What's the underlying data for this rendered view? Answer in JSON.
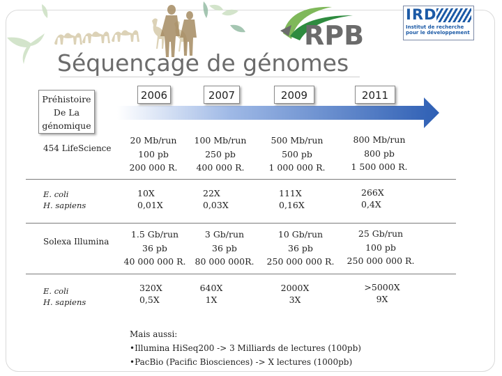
{
  "slide": {
    "title": "Séquençage de génomes",
    "logo_rpb": "RPB",
    "logo_ird": {
      "letters": "IRD",
      "line1": "Institut de recherche",
      "line2": "pour le développement"
    }
  },
  "timeline": {
    "prehistory": {
      "line1": "Préhistoire",
      "line2": "De La",
      "line3": "génomique"
    },
    "years": [
      "2006",
      "2007",
      "2009",
      "2011"
    ],
    "arrow_color": "#2e5fb4"
  },
  "rows": [
    {
      "label": "454 LifeScience",
      "cells": [
        [
          "20 Mb/run",
          "100 pb",
          "200 000 R."
        ],
        [
          "100 Mb/run",
          "250 pb",
          "400 000 R."
        ],
        [
          "500 Mb/run",
          "500 pb",
          "1 000 000 R."
        ],
        [
          "800 Mb/run",
          "800 pb",
          "1 500 000 R."
        ]
      ]
    },
    {
      "label_lines": [
        "E. coli",
        "H. sapiens"
      ],
      "cells": [
        [
          "10X",
          "0,01X"
        ],
        [
          "22X",
          "0,03X"
        ],
        [
          "111X",
          "0,16X"
        ],
        [
          "266X",
          "0,4X"
        ]
      ]
    },
    {
      "label": "Solexa Illumina",
      "cells": [
        [
          "1.5 Gb/run",
          "36 pb",
          "40 000 000 R."
        ],
        [
          "3 Gb/run",
          "36 pb",
          "80 000 000R."
        ],
        [
          "10 Gb/run",
          "36 pb",
          "250 000 000 R."
        ],
        [
          "25 Gb/run",
          "100 pb",
          "250 000 000 R."
        ]
      ]
    },
    {
      "label_lines": [
        "E. coli",
        "H. sapiens"
      ],
      "cells": [
        [
          "320X",
          "0,5X"
        ],
        [
          "640X",
          "1X"
        ],
        [
          "2000X",
          "3X"
        ],
        [
          ">5000X",
          "9X"
        ]
      ]
    }
  ],
  "notes": {
    "heading": "Mais aussi:",
    "items": [
      "•Illumina HiSeq200 -> 3 Milliards de lectures (100pb)",
      "•PacBio (Pacific Biosciences) -> X lectures (1000pb)"
    ]
  }
}
